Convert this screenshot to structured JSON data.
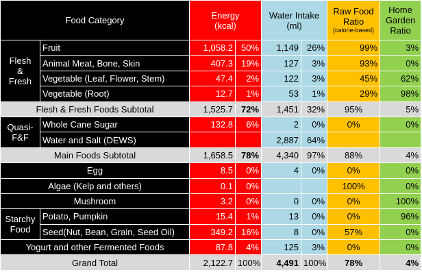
{
  "header": {
    "category": "Food Category",
    "energy_line1": "Energy",
    "energy_line2": "(kcal)",
    "water_line1": "Water Intake",
    "water_line2": "(ml)",
    "raw_line1": "Raw Food",
    "raw_line2": "Ratio",
    "raw_line3": "(calorie-based)",
    "garden_line1": "Home",
    "garden_line2": "Garden",
    "garden_line3": "Ratio"
  },
  "groups": {
    "flesh": "Flesh & Fresh",
    "flesh_l1": "Flesh",
    "flesh_l2": "&",
    "flesh_l3": "Fresh",
    "quasi_l1": "Quasi-",
    "quasi_l2": "F&F",
    "starchy_l1": "Starchy",
    "starchy_l2": "Food"
  },
  "rows": [
    {
      "label": "Fruit",
      "kcal": "1,058.2",
      "kcal_pct": "50%",
      "water": "1,149",
      "water_pct": "26%",
      "raw": "99%",
      "garden": "3%"
    },
    {
      "label": "Animal Meat, Bone, Skin",
      "kcal": "407.3",
      "kcal_pct": "19%",
      "water": "127",
      "water_pct": "3%",
      "raw": "93%",
      "garden": "0%"
    },
    {
      "label": "Vegetable (Leaf, Flower, Stem)",
      "kcal": "47.4",
      "kcal_pct": "2%",
      "water": "122",
      "water_pct": "3%",
      "raw": "45%",
      "garden": "62%"
    },
    {
      "label": "Vegetable (Root)",
      "kcal": "12.7",
      "kcal_pct": "1%",
      "water": "53",
      "water_pct": "1%",
      "raw": "29%",
      "garden": "98%"
    },
    {
      "label": "Flesh & Fresh Foods Subtotal",
      "kcal": "1,525.7",
      "kcal_pct": "72%",
      "water": "1,451",
      "water_pct": "32%",
      "raw": "95%",
      "garden": "5%"
    },
    {
      "label": "Whole Cane Sugar",
      "kcal": "132.8",
      "kcal_pct": "6%",
      "water": "2",
      "water_pct": "0%",
      "raw": "0%",
      "garden": "0%"
    },
    {
      "label": "Water and Salt (DEWS)",
      "kcal": "",
      "kcal_pct": "",
      "water": "2,887",
      "water_pct": "64%",
      "raw": "",
      "garden": ""
    },
    {
      "label": "Main Foods Subtotal",
      "kcal": "1,658.5",
      "kcal_pct": "78%",
      "water": "4,340",
      "water_pct": "97%",
      "raw": "88%",
      "garden": "4%"
    },
    {
      "label": "Egg",
      "kcal": "8.5",
      "kcal_pct": "0%",
      "water": "4",
      "water_pct": "0%",
      "raw": "0%",
      "garden": "0%"
    },
    {
      "label": "Algae (Kelp and others)",
      "kcal": "0.1",
      "kcal_pct": "0%",
      "water": "",
      "water_pct": "",
      "raw": "100%",
      "garden": "0%"
    },
    {
      "label": "Mushroom",
      "kcal": "3.2",
      "kcal_pct": "0%",
      "water": "0",
      "water_pct": "0%",
      "raw": "0%",
      "garden": "100%"
    },
    {
      "label": "Potato, Pumpkin",
      "kcal": "15.4",
      "kcal_pct": "1%",
      "water": "13",
      "water_pct": "0%",
      "raw": "0%",
      "garden": "96%"
    },
    {
      "label": "Seed(Nut, Bean, Grain, Seed Oil)",
      "kcal": "349.2",
      "kcal_pct": "16%",
      "water": "8",
      "water_pct": "0%",
      "raw": "57%",
      "garden": "0%"
    },
    {
      "label": "Yogurt and other Fermented Foods",
      "kcal": "87.8",
      "kcal_pct": "4%",
      "water": "125",
      "water_pct": "3%",
      "raw": "0%",
      "garden": "0%"
    },
    {
      "label": "Grand Total",
      "kcal": "2,122.7",
      "kcal_pct": "100%",
      "water": "4,491",
      "water_pct": "100%",
      "raw": "78%",
      "garden": "4%"
    }
  ],
  "colors": {
    "energy": "#ff0000",
    "water": "#add8e6",
    "raw": "#ffc000",
    "garden": "#92d050",
    "subtotal": "#d9d9d9",
    "label": "#000000"
  }
}
